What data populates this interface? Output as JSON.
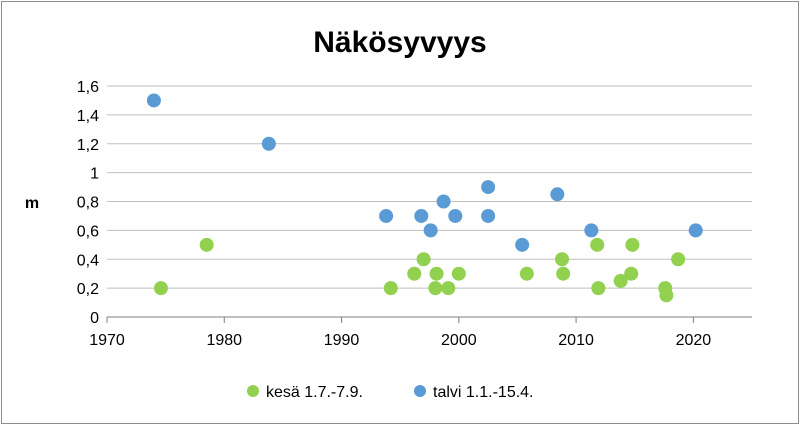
{
  "chart_data": {
    "type": "scatter",
    "title": "Näkösyvyys",
    "xlabel": "",
    "ylabel": "m",
    "xlim": [
      1970,
      2025
    ],
    "ylim": [
      0,
      1.6
    ],
    "x_ticks": [
      "1970",
      "1980",
      "1990",
      "2000",
      "2010",
      "2020"
    ],
    "y_ticks": [
      "0",
      "0,2",
      "0,4",
      "0,6",
      "0,8",
      "1",
      "1,2",
      "1,4",
      "1,6"
    ],
    "grid": "horizontal",
    "legend_position": "bottom",
    "series": [
      {
        "name": "kesä 1.7.-7.9.",
        "color": "#92d050",
        "points": [
          [
            1974.6,
            0.2
          ],
          [
            1978.5,
            0.5
          ],
          [
            1994.2,
            0.2
          ],
          [
            1996.2,
            0.3
          ],
          [
            1997.0,
            0.4
          ],
          [
            1998.0,
            0.2
          ],
          [
            1998.1,
            0.3
          ],
          [
            1999.1,
            0.2
          ],
          [
            2000.0,
            0.3
          ],
          [
            2005.8,
            0.3
          ],
          [
            2008.8,
            0.4
          ],
          [
            2008.9,
            0.3
          ],
          [
            2011.8,
            0.5
          ],
          [
            2011.9,
            0.2
          ],
          [
            2013.8,
            0.25
          ],
          [
            2014.7,
            0.3
          ],
          [
            2014.8,
            0.5
          ],
          [
            2017.6,
            0.2
          ],
          [
            2017.7,
            0.15
          ],
          [
            2018.7,
            0.4
          ]
        ]
      },
      {
        "name": "talvi 1.1.-15.4.",
        "color": "#5b9bd5",
        "points": [
          [
            1974.0,
            1.5
          ],
          [
            1983.8,
            1.2
          ],
          [
            1993.8,
            0.7
          ],
          [
            1996.8,
            0.7
          ],
          [
            1997.6,
            0.6
          ],
          [
            1998.7,
            0.8
          ],
          [
            1999.7,
            0.7
          ],
          [
            2002.5,
            0.9
          ],
          [
            2002.5,
            0.7
          ],
          [
            2005.4,
            0.5
          ],
          [
            2008.4,
            0.85
          ],
          [
            2011.3,
            0.6
          ],
          [
            2020.2,
            0.6
          ]
        ]
      }
    ]
  }
}
